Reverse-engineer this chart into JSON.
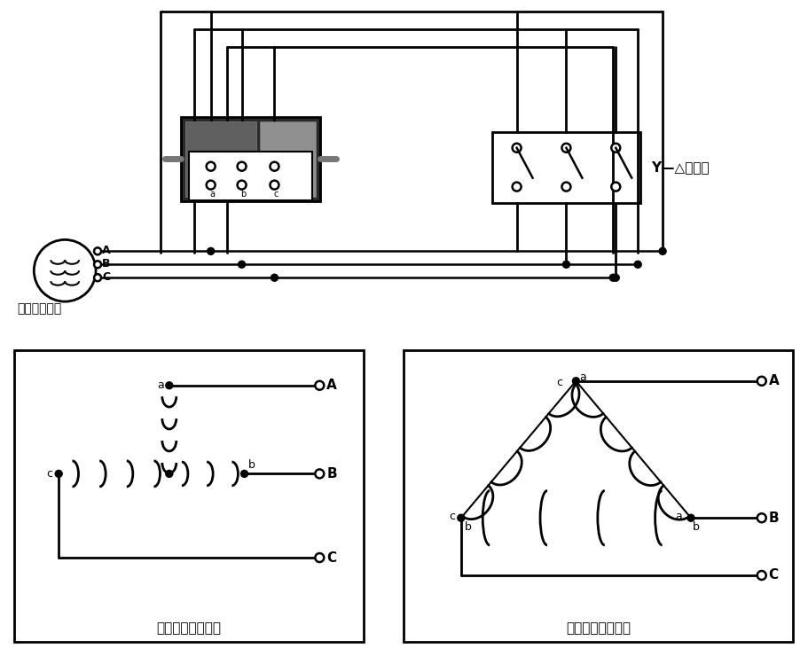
{
  "bg_color": "#ffffff",
  "line_color": "#000000",
  "label_source": "三相交流电源",
  "label_starter": "Y—△启动器",
  "label_start_method": "启动时的连接方法",
  "label_run_method": "运转时的连接方法",
  "figsize": [
    9.12,
    7.49
  ],
  "dpi": 100
}
